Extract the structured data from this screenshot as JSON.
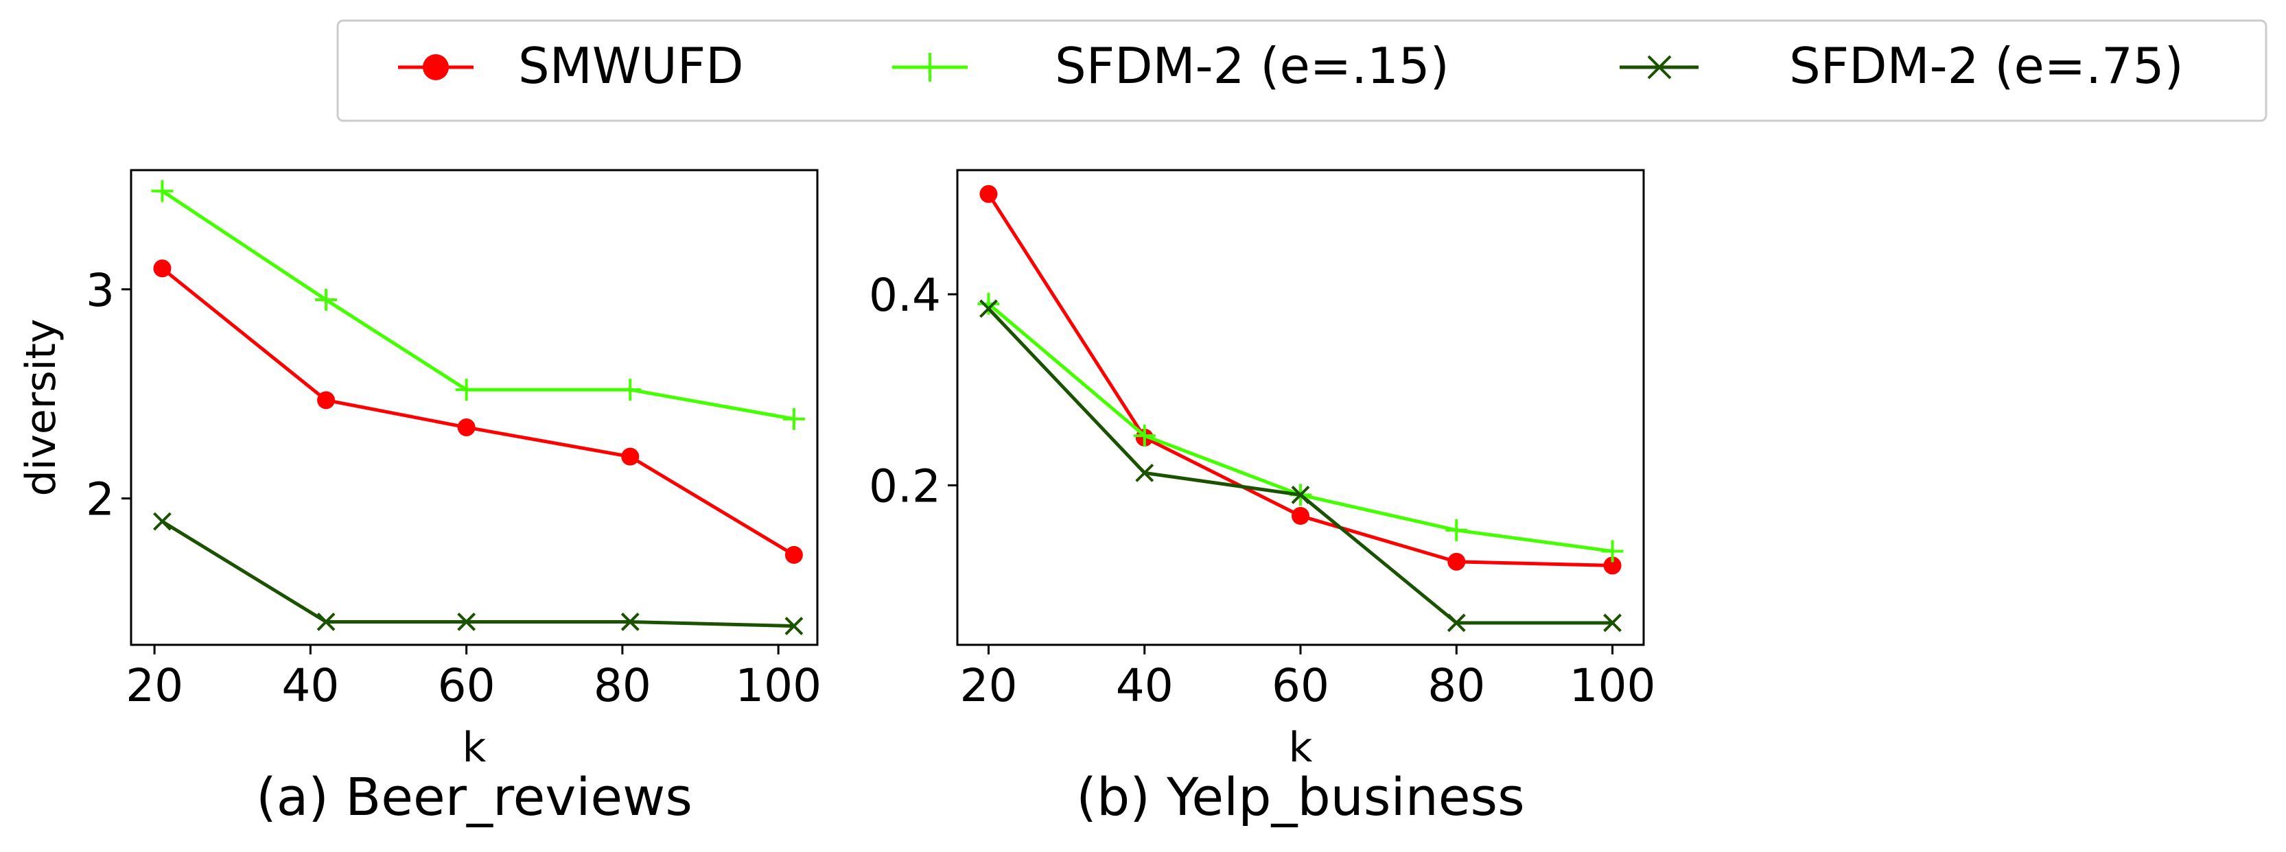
{
  "legend": {
    "entries": [
      {
        "label": "SMWUFD",
        "color": "#ff0000",
        "marker": "circle"
      },
      {
        "label": "SFDM-2 (e=.15)",
        "color": "#44ff00",
        "marker": "plus"
      },
      {
        "label": "SFDM-2 (e=.75)",
        "color": "#1a5200",
        "marker": "x"
      }
    ]
  },
  "chart_data": [
    {
      "type": "line",
      "title": "(a) Beer_reviews",
      "xlabel": "k",
      "ylabel": "diversity",
      "xlim": [
        17,
        105
      ],
      "ylim": [
        1.3,
        3.57
      ],
      "xticks": [
        20,
        40,
        60,
        80,
        100
      ],
      "yticks": [
        2,
        3
      ],
      "x": [
        21,
        42,
        60,
        81,
        102
      ],
      "series": [
        {
          "name": "SMWUFD",
          "color": "#ff0000",
          "marker": "circle",
          "values": [
            3.1,
            2.47,
            2.34,
            2.2,
            1.73
          ]
        },
        {
          "name": "SFDM-2 (e=.15)",
          "color": "#44ff00",
          "marker": "plus",
          "values": [
            3.47,
            2.95,
            2.52,
            2.52,
            2.38
          ]
        },
        {
          "name": "SFDM-2 (e=.75)",
          "color": "#1a5200",
          "marker": "x",
          "values": [
            1.89,
            1.41,
            1.41,
            1.41,
            1.39
          ]
        }
      ]
    },
    {
      "type": "line",
      "title": "(b) Yelp_business",
      "xlabel": "k",
      "ylabel": "",
      "xlim": [
        16,
        104
      ],
      "ylim": [
        0.033,
        0.53
      ],
      "xticks": [
        20,
        40,
        60,
        80,
        100
      ],
      "yticks": [
        0.2,
        0.4
      ],
      "x": [
        20,
        40,
        60,
        80,
        100
      ],
      "series": [
        {
          "name": "SMWUFD",
          "color": "#ff0000",
          "marker": "circle",
          "values": [
            0.505,
            0.25,
            0.168,
            0.12,
            0.116
          ]
        },
        {
          "name": "SFDM-2 (e=.15)",
          "color": "#44ff00",
          "marker": "plus",
          "values": [
            0.39,
            0.252,
            0.19,
            0.153,
            0.131
          ]
        },
        {
          "name": "SFDM-2 (e=.75)",
          "color": "#1a5200",
          "marker": "x",
          "values": [
            0.385,
            0.213,
            0.19,
            0.056,
            0.056
          ]
        }
      ]
    }
  ]
}
